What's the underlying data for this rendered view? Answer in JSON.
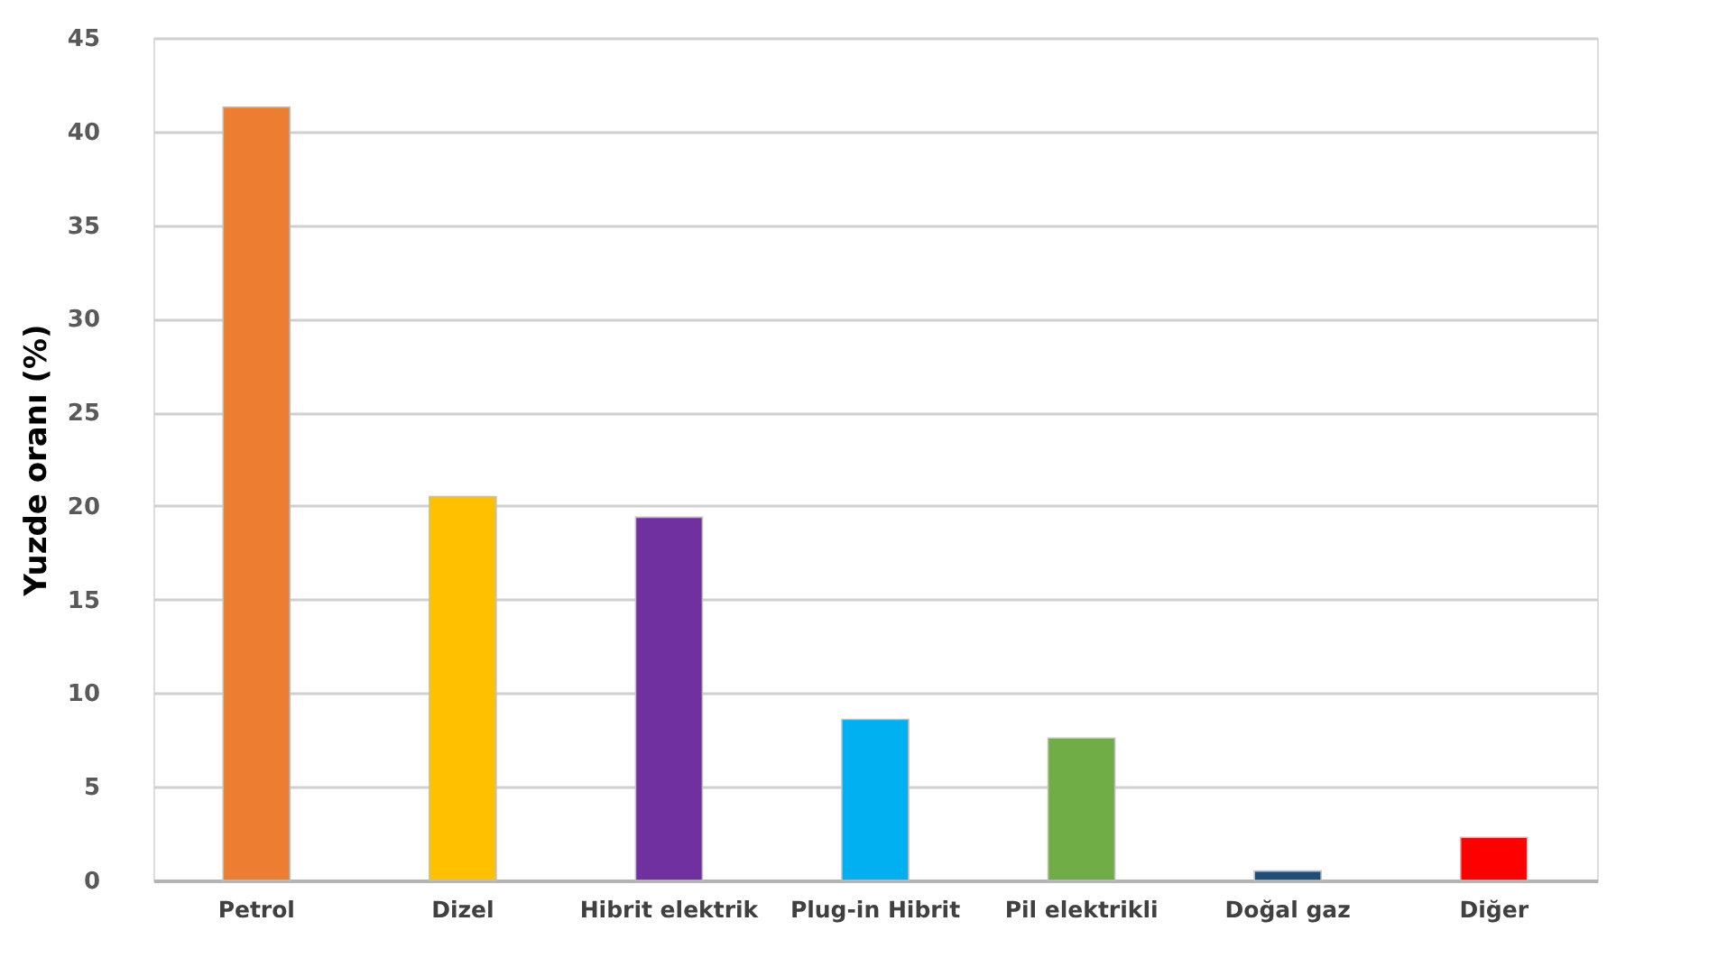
{
  "chart_data": {
    "type": "bar",
    "ylabel": "Yuzde oranı (%)",
    "categories": [
      "Petrol",
      "Dizel",
      "Hibrit elektrik",
      "Plug-in Hibrit",
      "Pil elektrikli",
      "Doğal gaz",
      "Diğer"
    ],
    "values": [
      41.3,
      20.5,
      19.4,
      8.6,
      7.6,
      0.5,
      2.3
    ],
    "colors": [
      "#ed7d31",
      "#ffc000",
      "#7030a0",
      "#00b0f0",
      "#70ad47",
      "#1f4e79",
      "#ff0000"
    ],
    "ylim": [
      0,
      45
    ],
    "yticks": [
      0,
      5,
      10,
      15,
      20,
      25,
      30,
      35,
      40,
      45
    ],
    "grid": "y",
    "legend": false
  }
}
